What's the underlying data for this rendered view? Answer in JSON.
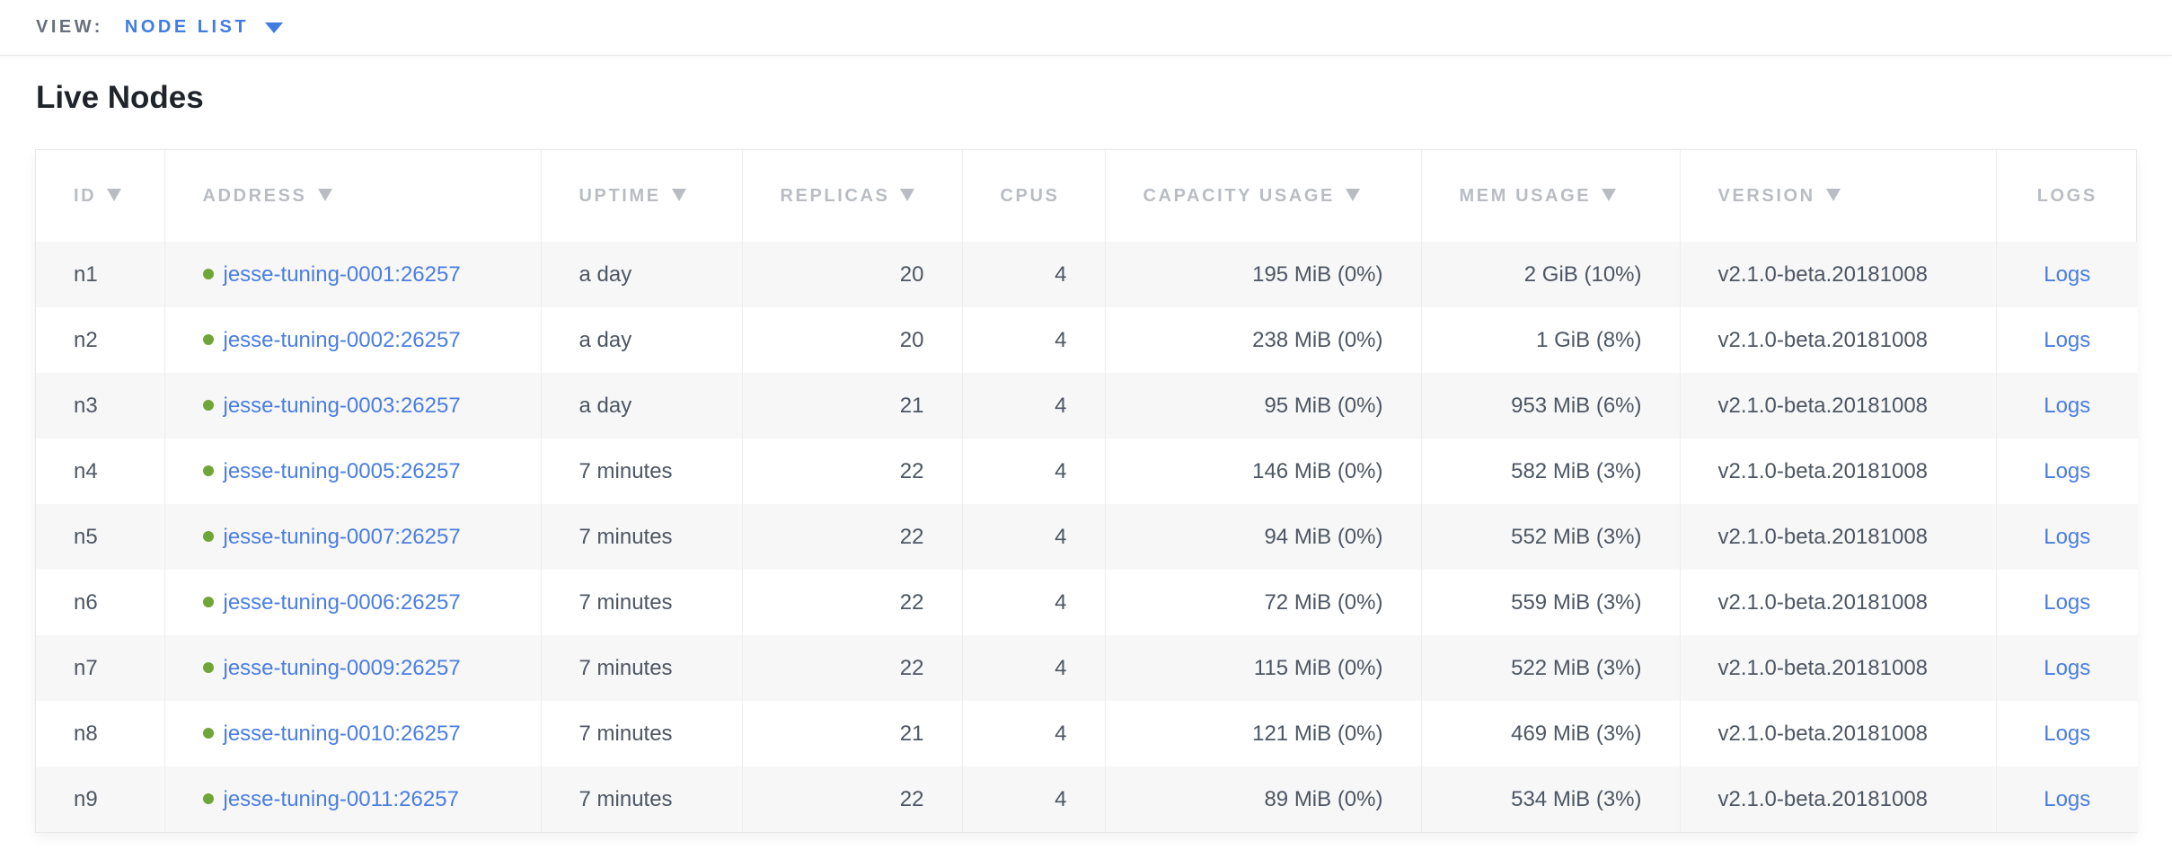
{
  "view_bar": {
    "label": "VIEW:",
    "selected_view": "NODE LIST"
  },
  "page": {
    "title": "Live Nodes"
  },
  "colors": {
    "accent_blue": "#417ce2",
    "link_blue": "#4a7de2",
    "status_green": "#6fa637",
    "header_gray": "#b9bdc3",
    "cell_text": "#4d5663",
    "row_stripe": "#f7f7f7"
  },
  "table": {
    "columns": [
      {
        "key": "id",
        "label": "ID",
        "sort_arrow": true,
        "sortable": true
      },
      {
        "key": "address",
        "label": "ADDRESS",
        "sort_arrow": true,
        "sortable": true
      },
      {
        "key": "uptime",
        "label": "UPTIME",
        "sort_arrow": true,
        "sortable": true
      },
      {
        "key": "replicas",
        "label": "REPLICAS",
        "sort_arrow": true,
        "sortable": true
      },
      {
        "key": "cpus",
        "label": "CPUS",
        "sort_arrow": false,
        "sortable": false
      },
      {
        "key": "capacity",
        "label": "CAPACITY USAGE",
        "sort_arrow": true,
        "sortable": true
      },
      {
        "key": "mem",
        "label": "MEM USAGE",
        "sort_arrow": true,
        "sortable": true
      },
      {
        "key": "version",
        "label": "VERSION",
        "sort_arrow": true,
        "sortable": true
      },
      {
        "key": "logs",
        "label": "LOGS",
        "sort_arrow": false,
        "sortable": false
      }
    ],
    "logs_link_label": "Logs",
    "rows": [
      {
        "id": "n1",
        "address": "jesse-tuning-0001:26257",
        "uptime": "a day",
        "replicas": "20",
        "cpus": "4",
        "capacity": "195 MiB (0%)",
        "mem": "2 GiB (10%)",
        "version": "v2.1.0-beta.20181008",
        "logs": "Logs"
      },
      {
        "id": "n2",
        "address": "jesse-tuning-0002:26257",
        "uptime": "a day",
        "replicas": "20",
        "cpus": "4",
        "capacity": "238 MiB (0%)",
        "mem": "1 GiB (8%)",
        "version": "v2.1.0-beta.20181008",
        "logs": "Logs"
      },
      {
        "id": "n3",
        "address": "jesse-tuning-0003:26257",
        "uptime": "a day",
        "replicas": "21",
        "cpus": "4",
        "capacity": "95 MiB (0%)",
        "mem": "953 MiB (6%)",
        "version": "v2.1.0-beta.20181008",
        "logs": "Logs"
      },
      {
        "id": "n4",
        "address": "jesse-tuning-0005:26257",
        "uptime": "7 minutes",
        "replicas": "22",
        "cpus": "4",
        "capacity": "146 MiB (0%)",
        "mem": "582 MiB (3%)",
        "version": "v2.1.0-beta.20181008",
        "logs": "Logs"
      },
      {
        "id": "n5",
        "address": "jesse-tuning-0007:26257",
        "uptime": "7 minutes",
        "replicas": "22",
        "cpus": "4",
        "capacity": "94 MiB (0%)",
        "mem": "552 MiB (3%)",
        "version": "v2.1.0-beta.20181008",
        "logs": "Logs"
      },
      {
        "id": "n6",
        "address": "jesse-tuning-0006:26257",
        "uptime": "7 minutes",
        "replicas": "22",
        "cpus": "4",
        "capacity": "72 MiB (0%)",
        "mem": "559 MiB (3%)",
        "version": "v2.1.0-beta.20181008",
        "logs": "Logs"
      },
      {
        "id": "n7",
        "address": "jesse-tuning-0009:26257",
        "uptime": "7 minutes",
        "replicas": "22",
        "cpus": "4",
        "capacity": "115 MiB (0%)",
        "mem": "522 MiB (3%)",
        "version": "v2.1.0-beta.20181008",
        "logs": "Logs"
      },
      {
        "id": "n8",
        "address": "jesse-tuning-0010:26257",
        "uptime": "7 minutes",
        "replicas": "21",
        "cpus": "4",
        "capacity": "121 MiB (0%)",
        "mem": "469 MiB (3%)",
        "version": "v2.1.0-beta.20181008",
        "logs": "Logs"
      },
      {
        "id": "n9",
        "address": "jesse-tuning-0011:26257",
        "uptime": "7 minutes",
        "replicas": "22",
        "cpus": "4",
        "capacity": "89 MiB (0%)",
        "mem": "534 MiB (3%)",
        "version": "v2.1.0-beta.20181008",
        "logs": "Logs"
      }
    ]
  }
}
